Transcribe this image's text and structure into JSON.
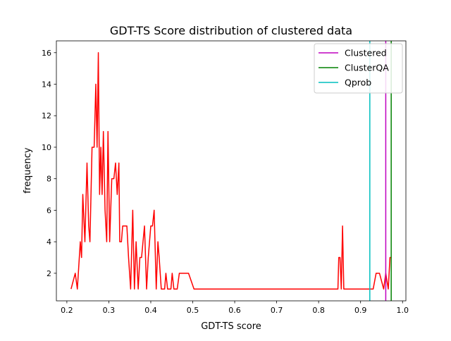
{
  "chart_data": {
    "type": "line",
    "title": "GDT-TS Score distribution of clustered data",
    "xlabel": "GDT-TS score",
    "ylabel": "frequency",
    "xlim": [
      0.175,
      1.008
    ],
    "ylim": [
      0.25,
      16.75
    ],
    "xticks": [
      0.2,
      0.3,
      0.4,
      0.5,
      0.6,
      0.7,
      0.8,
      0.9,
      1.0
    ],
    "xtick_labels": [
      "0.2",
      "0.3",
      "0.4",
      "0.5",
      "0.6",
      "0.7",
      "0.8",
      "0.9",
      "1.0"
    ],
    "yticks": [
      2,
      4,
      6,
      8,
      10,
      12,
      14,
      16
    ],
    "ytick_labels": [
      "2",
      "4",
      "6",
      "8",
      "10",
      "12",
      "14",
      "16"
    ],
    "grid": false,
    "legend_position": "upper-right",
    "colors": {
      "distribution": "#ff0000",
      "clustered": "#bf00bf",
      "clusterqa": "#008000",
      "qprob": "#00bfbf"
    },
    "series": [
      {
        "name": "",
        "color": "#ff0000",
        "points": [
          [
            0.21,
            1
          ],
          [
            0.22,
            2
          ],
          [
            0.225,
            1
          ],
          [
            0.232,
            4
          ],
          [
            0.235,
            3
          ],
          [
            0.238,
            7
          ],
          [
            0.243,
            4
          ],
          [
            0.248,
            9
          ],
          [
            0.252,
            5
          ],
          [
            0.255,
            4
          ],
          [
            0.26,
            10
          ],
          [
            0.265,
            10
          ],
          [
            0.269,
            14
          ],
          [
            0.272,
            10
          ],
          [
            0.275,
            16
          ],
          [
            0.278,
            7
          ],
          [
            0.281,
            10
          ],
          [
            0.284,
            7
          ],
          [
            0.287,
            11
          ],
          [
            0.291,
            6
          ],
          [
            0.295,
            4
          ],
          [
            0.298,
            11
          ],
          [
            0.302,
            4
          ],
          [
            0.307,
            8
          ],
          [
            0.312,
            8
          ],
          [
            0.316,
            9
          ],
          [
            0.32,
            7
          ],
          [
            0.324,
            9
          ],
          [
            0.326,
            4
          ],
          [
            0.33,
            4
          ],
          [
            0.333,
            5
          ],
          [
            0.343,
            5
          ],
          [
            0.347,
            3
          ],
          [
            0.352,
            1
          ],
          [
            0.357,
            6
          ],
          [
            0.361,
            1
          ],
          [
            0.365,
            4
          ],
          [
            0.37,
            1
          ],
          [
            0.374,
            3
          ],
          [
            0.378,
            3
          ],
          [
            0.385,
            5
          ],
          [
            0.39,
            1
          ],
          [
            0.394,
            3
          ],
          [
            0.4,
            5
          ],
          [
            0.404,
            5
          ],
          [
            0.408,
            6
          ],
          [
            0.413,
            1
          ],
          [
            0.417,
            4
          ],
          [
            0.42,
            3
          ],
          [
            0.425,
            1
          ],
          [
            0.433,
            1
          ],
          [
            0.436,
            2
          ],
          [
            0.44,
            1
          ],
          [
            0.448,
            1
          ],
          [
            0.451,
            2
          ],
          [
            0.455,
            1
          ],
          [
            0.463,
            1
          ],
          [
            0.468,
            2
          ],
          [
            0.49,
            2
          ],
          [
            0.503,
            1
          ],
          [
            0.846,
            1
          ],
          [
            0.848,
            3
          ],
          [
            0.851,
            3
          ],
          [
            0.854,
            1
          ],
          [
            0.857,
            5
          ],
          [
            0.86,
            1
          ],
          [
            0.87,
            1
          ],
          [
            0.93,
            1
          ],
          [
            0.937,
            2
          ],
          [
            0.945,
            2
          ],
          [
            0.955,
            1
          ],
          [
            0.96,
            2
          ],
          [
            0.966,
            1
          ],
          [
            0.97,
            3
          ],
          [
            0.973,
            3
          ]
        ]
      }
    ],
    "vlines": [
      {
        "name": "Clustered",
        "x": 0.96,
        "color": "#bf00bf"
      },
      {
        "name": " ClusterQA",
        "x": 0.973,
        "color": "#008000"
      },
      {
        "name": " Qprob",
        "x": 0.922,
        "color": "#00bfbf"
      }
    ]
  }
}
